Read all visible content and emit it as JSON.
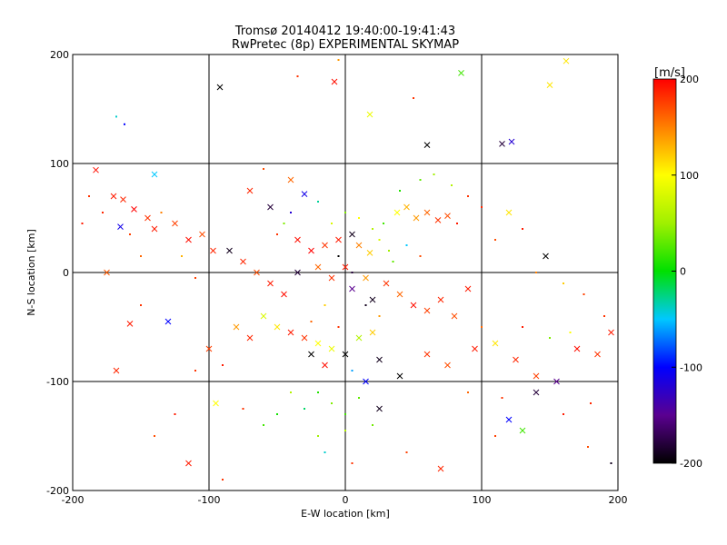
{
  "chart_data": {
    "type": "scatter",
    "title": "Tromsø 20140412 19:40:00-19:41:43",
    "subtitle": "RwPretec (8p) EXPERIMENTAL SKYMAP",
    "xlabel": "E-W location [km]",
    "ylabel": "N-S location [km]",
    "xlim": [
      -200,
      200
    ],
    "ylim": [
      -200,
      200
    ],
    "x_ticks": [
      -200,
      -100,
      0,
      100,
      200
    ],
    "y_ticks": [
      -200,
      -100,
      0,
      100,
      200
    ],
    "x_tick_labels": [
      "-200",
      "-100",
      "0",
      "100",
      "200"
    ],
    "y_tick_labels": [
      "-200",
      "-100",
      "0",
      "100",
      "200"
    ],
    "grid": true,
    "markers": [
      "dot",
      "cross"
    ],
    "colorbar": {
      "label": "[m/s]",
      "range": [
        -200,
        200
      ],
      "ticks": [
        200,
        100,
        0,
        -100,
        -200
      ],
      "tick_labels": [
        "200",
        "100",
        "0",
        "-100",
        "-200"
      ],
      "colormap": [
        {
          "value": -200,
          "color": "#000000"
        },
        {
          "value": -150,
          "color": "#5a0090"
        },
        {
          "value": -100,
          "color": "#0000ff"
        },
        {
          "value": -50,
          "color": "#00c8ff"
        },
        {
          "value": 0,
          "color": "#00e000"
        },
        {
          "value": 50,
          "color": "#a0f000"
        },
        {
          "value": 100,
          "color": "#ffff00"
        },
        {
          "value": 150,
          "color": "#ff8000"
        },
        {
          "value": 200,
          "color": "#ff0000"
        }
      ]
    },
    "points": [
      {
        "x": -183,
        "y": 94,
        "v": 195,
        "m": "x"
      },
      {
        "x": -170,
        "y": 70,
        "v": 190,
        "m": "x"
      },
      {
        "x": -163,
        "y": 67,
        "v": 185,
        "m": "x"
      },
      {
        "x": -155,
        "y": 58,
        "v": 200,
        "m": "x"
      },
      {
        "x": -145,
        "y": 50,
        "v": 180,
        "m": "x"
      },
      {
        "x": -140,
        "y": 40,
        "v": 190,
        "m": "x"
      },
      {
        "x": -125,
        "y": 45,
        "v": 175,
        "m": "x"
      },
      {
        "x": -115,
        "y": 30,
        "v": 195,
        "m": "x"
      },
      {
        "x": -105,
        "y": 35,
        "v": 170,
        "m": "x"
      },
      {
        "x": -97,
        "y": 20,
        "v": 185,
        "m": "x"
      },
      {
        "x": -165,
        "y": 42,
        "v": -110,
        "m": "x"
      },
      {
        "x": -188,
        "y": 70,
        "v": 180,
        "m": "."
      },
      {
        "x": -193,
        "y": 45,
        "v": 190,
        "m": "."
      },
      {
        "x": -178,
        "y": 55,
        "v": 185,
        "m": "."
      },
      {
        "x": -158,
        "y": 35,
        "v": 175,
        "m": "."
      },
      {
        "x": -150,
        "y": 15,
        "v": 160,
        "m": "."
      },
      {
        "x": -135,
        "y": 55,
        "v": 150,
        "m": "."
      },
      {
        "x": -120,
        "y": 15,
        "v": 130,
        "m": "."
      },
      {
        "x": -110,
        "y": -5,
        "v": 175,
        "m": "."
      },
      {
        "x": -175,
        "y": 0,
        "v": 165,
        "m": "x"
      },
      {
        "x": -158,
        "y": -47,
        "v": 190,
        "m": "x"
      },
      {
        "x": -150,
        "y": -30,
        "v": 180,
        "m": "."
      },
      {
        "x": -130,
        "y": -45,
        "v": -100,
        "m": "x"
      },
      {
        "x": -168,
        "y": 143,
        "v": -40,
        "m": "."
      },
      {
        "x": -162,
        "y": 136,
        "v": -100,
        "m": "."
      },
      {
        "x": -140,
        "y": 90,
        "v": -50,
        "m": "x"
      },
      {
        "x": -168,
        "y": -90,
        "v": 185,
        "m": "x"
      },
      {
        "x": -115,
        "y": -175,
        "v": 190,
        "m": "x"
      },
      {
        "x": -92,
        "y": 170,
        "v": -200,
        "m": "x"
      },
      {
        "x": -8,
        "y": 175,
        "v": 195,
        "m": "x"
      },
      {
        "x": -5,
        "y": 195,
        "v": 140,
        "m": "."
      },
      {
        "x": -35,
        "y": 180,
        "v": 180,
        "m": "."
      },
      {
        "x": 18,
        "y": 145,
        "v": 90,
        "m": "x"
      },
      {
        "x": 60,
        "y": 117,
        "v": -200,
        "m": "x"
      },
      {
        "x": 85,
        "y": 183,
        "v": 20,
        "m": "x"
      },
      {
        "x": 115,
        "y": 118,
        "v": -180,
        "m": "x"
      },
      {
        "x": 122,
        "y": 120,
        "v": -120,
        "m": "x"
      },
      {
        "x": 150,
        "y": 172,
        "v": 110,
        "m": "x"
      },
      {
        "x": 162,
        "y": 194,
        "v": 110,
        "m": "x"
      },
      {
        "x": 50,
        "y": 160,
        "v": 180,
        "m": "."
      },
      {
        "x": -60,
        "y": 95,
        "v": 170,
        "m": "."
      },
      {
        "x": -40,
        "y": 85,
        "v": 160,
        "m": "x"
      },
      {
        "x": -70,
        "y": 75,
        "v": 185,
        "m": "x"
      },
      {
        "x": -55,
        "y": 60,
        "v": -180,
        "m": "x"
      },
      {
        "x": -30,
        "y": 72,
        "v": -110,
        "m": "x"
      },
      {
        "x": -20,
        "y": 65,
        "v": -30,
        "m": "."
      },
      {
        "x": -45,
        "y": 45,
        "v": 40,
        "m": "."
      },
      {
        "x": -35,
        "y": 30,
        "v": 195,
        "m": "x"
      },
      {
        "x": -25,
        "y": 20,
        "v": 200,
        "m": "x"
      },
      {
        "x": -15,
        "y": 25,
        "v": 180,
        "m": "x"
      },
      {
        "x": -5,
        "y": 30,
        "v": 190,
        "m": "x"
      },
      {
        "x": 5,
        "y": 35,
        "v": -190,
        "m": "x"
      },
      {
        "x": 10,
        "y": 25,
        "v": 150,
        "m": "x"
      },
      {
        "x": 18,
        "y": 18,
        "v": 120,
        "m": "x"
      },
      {
        "x": 25,
        "y": 30,
        "v": 80,
        "m": "."
      },
      {
        "x": 32,
        "y": 20,
        "v": 50,
        "m": "."
      },
      {
        "x": 38,
        "y": 55,
        "v": 100,
        "m": "x"
      },
      {
        "x": 45,
        "y": 60,
        "v": 130,
        "m": "x"
      },
      {
        "x": 52,
        "y": 50,
        "v": 140,
        "m": "x"
      },
      {
        "x": 60,
        "y": 55,
        "v": 160,
        "m": "x"
      },
      {
        "x": 68,
        "y": 48,
        "v": 180,
        "m": "x"
      },
      {
        "x": 75,
        "y": 52,
        "v": 170,
        "m": "x"
      },
      {
        "x": 82,
        "y": 45,
        "v": 190,
        "m": "."
      },
      {
        "x": 28,
        "y": 45,
        "v": 20,
        "m": "."
      },
      {
        "x": 40,
        "y": 75,
        "v": 10,
        "m": "."
      },
      {
        "x": 55,
        "y": 85,
        "v": 30,
        "m": "."
      },
      {
        "x": 65,
        "y": 90,
        "v": 50,
        "m": "."
      },
      {
        "x": 78,
        "y": 80,
        "v": 60,
        "m": "."
      },
      {
        "x": 90,
        "y": 70,
        "v": 180,
        "m": "."
      },
      {
        "x": 100,
        "y": 60,
        "v": 185,
        "m": "."
      },
      {
        "x": 120,
        "y": 55,
        "v": 110,
        "m": "x"
      },
      {
        "x": 130,
        "y": 40,
        "v": 190,
        "m": "."
      },
      {
        "x": 110,
        "y": 30,
        "v": 170,
        "m": "."
      },
      {
        "x": 147,
        "y": 15,
        "v": -200,
        "m": "x"
      },
      {
        "x": 140,
        "y": 0,
        "v": 150,
        "m": "."
      },
      {
        "x": 160,
        "y": -10,
        "v": 120,
        "m": "."
      },
      {
        "x": 175,
        "y": -20,
        "v": 175,
        "m": "."
      },
      {
        "x": 190,
        "y": -40,
        "v": 180,
        "m": "."
      },
      {
        "x": -85,
        "y": 20,
        "v": -190,
        "m": "x"
      },
      {
        "x": -75,
        "y": 10,
        "v": 185,
        "m": "x"
      },
      {
        "x": -65,
        "y": 0,
        "v": 170,
        "m": "x"
      },
      {
        "x": -55,
        "y": -10,
        "v": 190,
        "m": "x"
      },
      {
        "x": -45,
        "y": -20,
        "v": 195,
        "m": "x"
      },
      {
        "x": -35,
        "y": 0,
        "v": -180,
        "m": "x"
      },
      {
        "x": -20,
        "y": 5,
        "v": 160,
        "m": "x"
      },
      {
        "x": -10,
        "y": -5,
        "v": 180,
        "m": "x"
      },
      {
        "x": 0,
        "y": 5,
        "v": 190,
        "m": "x"
      },
      {
        "x": 5,
        "y": -15,
        "v": -150,
        "m": "x"
      },
      {
        "x": 15,
        "y": -5,
        "v": 140,
        "m": "x"
      },
      {
        "x": 20,
        "y": -25,
        "v": -190,
        "m": "x"
      },
      {
        "x": 30,
        "y": -10,
        "v": 180,
        "m": "x"
      },
      {
        "x": 40,
        "y": -20,
        "v": 160,
        "m": "x"
      },
      {
        "x": 50,
        "y": -30,
        "v": 195,
        "m": "x"
      },
      {
        "x": 60,
        "y": -35,
        "v": 175,
        "m": "x"
      },
      {
        "x": 70,
        "y": -25,
        "v": 185,
        "m": "x"
      },
      {
        "x": 80,
        "y": -40,
        "v": 170,
        "m": "x"
      },
      {
        "x": 90,
        "y": -15,
        "v": 190,
        "m": "x"
      },
      {
        "x": 100,
        "y": -50,
        "v": 160,
        "m": "."
      },
      {
        "x": -10,
        "y": 45,
        "v": 80,
        "m": "."
      },
      {
        "x": 0,
        "y": 55,
        "v": 40,
        "m": "."
      },
      {
        "x": 10,
        "y": 50,
        "v": 100,
        "m": "."
      },
      {
        "x": 20,
        "y": 40,
        "v": 60,
        "m": "."
      },
      {
        "x": -60,
        "y": -40,
        "v": 80,
        "m": "x"
      },
      {
        "x": -50,
        "y": -50,
        "v": 110,
        "m": "x"
      },
      {
        "x": -40,
        "y": -55,
        "v": 190,
        "m": "x"
      },
      {
        "x": -30,
        "y": -60,
        "v": 180,
        "m": "x"
      },
      {
        "x": -20,
        "y": -65,
        "v": 100,
        "m": "x"
      },
      {
        "x": -10,
        "y": -70,
        "v": 90,
        "m": "x"
      },
      {
        "x": 0,
        "y": -75,
        "v": -200,
        "m": "x"
      },
      {
        "x": 10,
        "y": -60,
        "v": 60,
        "m": "x"
      },
      {
        "x": 20,
        "y": -55,
        "v": 120,
        "m": "x"
      },
      {
        "x": -70,
        "y": -60,
        "v": 185,
        "m": "x"
      },
      {
        "x": -80,
        "y": -50,
        "v": 140,
        "m": "x"
      },
      {
        "x": -100,
        "y": -70,
        "v": 175,
        "m": "x"
      },
      {
        "x": -110,
        "y": -90,
        "v": 180,
        "m": "."
      },
      {
        "x": -90,
        "y": -85,
        "v": 190,
        "m": "."
      },
      {
        "x": -25,
        "y": -75,
        "v": -200,
        "m": "x"
      },
      {
        "x": -15,
        "y": -85,
        "v": 195,
        "m": "x"
      },
      {
        "x": 5,
        "y": -90,
        "v": -60,
        "m": "."
      },
      {
        "x": 25,
        "y": -80,
        "v": -190,
        "m": "x"
      },
      {
        "x": 40,
        "y": -95,
        "v": -200,
        "m": "x"
      },
      {
        "x": 60,
        "y": -75,
        "v": 180,
        "m": "x"
      },
      {
        "x": 75,
        "y": -85,
        "v": 170,
        "m": "x"
      },
      {
        "x": 95,
        "y": -70,
        "v": 190,
        "m": "x"
      },
      {
        "x": 110,
        "y": -65,
        "v": 110,
        "m": "x"
      },
      {
        "x": 125,
        "y": -80,
        "v": 185,
        "m": "x"
      },
      {
        "x": 140,
        "y": -95,
        "v": 175,
        "m": "x"
      },
      {
        "x": 155,
        "y": -100,
        "v": -150,
        "m": "x"
      },
      {
        "x": 170,
        "y": -70,
        "v": 195,
        "m": "x"
      },
      {
        "x": 185,
        "y": -75,
        "v": 180,
        "m": "x"
      },
      {
        "x": 195,
        "y": -55,
        "v": 190,
        "m": "x"
      },
      {
        "x": 165,
        "y": -55,
        "v": 100,
        "m": "."
      },
      {
        "x": 150,
        "y": -60,
        "v": 40,
        "m": "."
      },
      {
        "x": 130,
        "y": -50,
        "v": 190,
        "m": "."
      },
      {
        "x": 115,
        "y": -115,
        "v": 180,
        "m": "."
      },
      {
        "x": 90,
        "y": -110,
        "v": 160,
        "m": "."
      },
      {
        "x": 120,
        "y": -135,
        "v": -100,
        "m": "x"
      },
      {
        "x": 140,
        "y": -110,
        "v": -180,
        "m": "x"
      },
      {
        "x": 110,
        "y": -150,
        "v": 175,
        "m": "."
      },
      {
        "x": 130,
        "y": -145,
        "v": 20,
        "m": "x"
      },
      {
        "x": 160,
        "y": -130,
        "v": 190,
        "m": "."
      },
      {
        "x": 178,
        "y": -160,
        "v": 170,
        "m": "."
      },
      {
        "x": 195,
        "y": -175,
        "v": -190,
        "m": "."
      },
      {
        "x": 180,
        "y": -120,
        "v": 185,
        "m": "."
      },
      {
        "x": -20,
        "y": -110,
        "v": 10,
        "m": "."
      },
      {
        "x": -10,
        "y": -120,
        "v": 40,
        "m": "."
      },
      {
        "x": 0,
        "y": -130,
        "v": 20,
        "m": "."
      },
      {
        "x": 10,
        "y": -115,
        "v": 30,
        "m": "."
      },
      {
        "x": -30,
        "y": -125,
        "v": -20,
        "m": "."
      },
      {
        "x": -40,
        "y": -110,
        "v": 60,
        "m": "."
      },
      {
        "x": 25,
        "y": -125,
        "v": -190,
        "m": "x"
      },
      {
        "x": 15,
        "y": -100,
        "v": -100,
        "m": "x"
      },
      {
        "x": -50,
        "y": -130,
        "v": 5,
        "m": "."
      },
      {
        "x": -60,
        "y": -140,
        "v": 20,
        "m": "."
      },
      {
        "x": -20,
        "y": -150,
        "v": 50,
        "m": "."
      },
      {
        "x": 0,
        "y": -145,
        "v": 60,
        "m": "."
      },
      {
        "x": 20,
        "y": -140,
        "v": 35,
        "m": "."
      },
      {
        "x": -15,
        "y": -165,
        "v": -40,
        "m": "."
      },
      {
        "x": 5,
        "y": -175,
        "v": 180,
        "m": "."
      },
      {
        "x": -75,
        "y": -125,
        "v": 180,
        "m": "."
      },
      {
        "x": -95,
        "y": -120,
        "v": 100,
        "m": "x"
      },
      {
        "x": -125,
        "y": -130,
        "v": 190,
        "m": "."
      },
      {
        "x": -140,
        "y": -150,
        "v": 170,
        "m": "."
      },
      {
        "x": 70,
        "y": -180,
        "v": 185,
        "m": "x"
      },
      {
        "x": 45,
        "y": -165,
        "v": 175,
        "m": "."
      },
      {
        "x": -90,
        "y": -190,
        "v": 180,
        "m": "."
      },
      {
        "x": -5,
        "y": 15,
        "v": -200,
        "m": "."
      },
      {
        "x": 5,
        "y": 0,
        "v": -180,
        "m": "."
      },
      {
        "x": 15,
        "y": -30,
        "v": -190,
        "m": "."
      },
      {
        "x": 25,
        "y": -40,
        "v": 140,
        "m": "."
      },
      {
        "x": -15,
        "y": -30,
        "v": 120,
        "m": "."
      },
      {
        "x": -25,
        "y": -45,
        "v": 160,
        "m": "."
      },
      {
        "x": -5,
        "y": -50,
        "v": 180,
        "m": "."
      },
      {
        "x": 35,
        "y": 10,
        "v": 30,
        "m": "."
      },
      {
        "x": 45,
        "y": 25,
        "v": -50,
        "m": "."
      },
      {
        "x": 55,
        "y": 15,
        "v": 170,
        "m": "."
      },
      {
        "x": -40,
        "y": 55,
        "v": -120,
        "m": "."
      },
      {
        "x": -50,
        "y": 35,
        "v": 180,
        "m": "."
      }
    ]
  }
}
